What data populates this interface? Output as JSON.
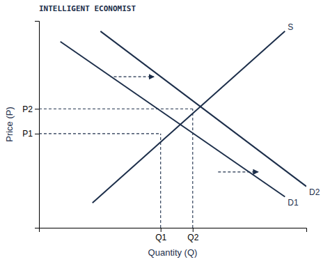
{
  "chart_data": {
    "type": "line",
    "xlabel": "Quantity (Q)",
    "ylabel": "Price (P)",
    "annotations": [
      "INTELLIGENT ECONOMIST"
    ],
    "color": "#1C2E4A",
    "xlim": [
      0,
      10
    ],
    "ylim": [
      0,
      10
    ],
    "xticks": [
      {
        "value": 4.55,
        "label": "Q1"
      },
      {
        "value": 5.75,
        "label": "Q2"
      }
    ],
    "yticks": [
      {
        "value": 4.55,
        "label": "P1"
      },
      {
        "value": 5.75,
        "label": "P2"
      }
    ],
    "series": [
      {
        "name": "S",
        "x": [
          2.0,
          9.2
        ],
        "values": [
          1.2,
          9.5
        ]
      },
      {
        "name": "D1",
        "x": [
          0.8,
          9.2
        ],
        "values": [
          9.0,
          1.5
        ]
      },
      {
        "name": "D2",
        "x": [
          2.3,
          10.0
        ],
        "values": [
          9.5,
          2.0
        ]
      }
    ],
    "points": {
      "x": [
        4.55,
        5.75
      ],
      "y": [
        4.55,
        5.75
      ]
    },
    "arrows": [
      {
        "x": [
          2.8,
          4.3
        ],
        "y": [
          7.3,
          7.3
        ]
      },
      {
        "x": [
          6.7,
          8.2
        ],
        "y": [
          2.7,
          2.7
        ]
      }
    ],
    "grid": false
  }
}
